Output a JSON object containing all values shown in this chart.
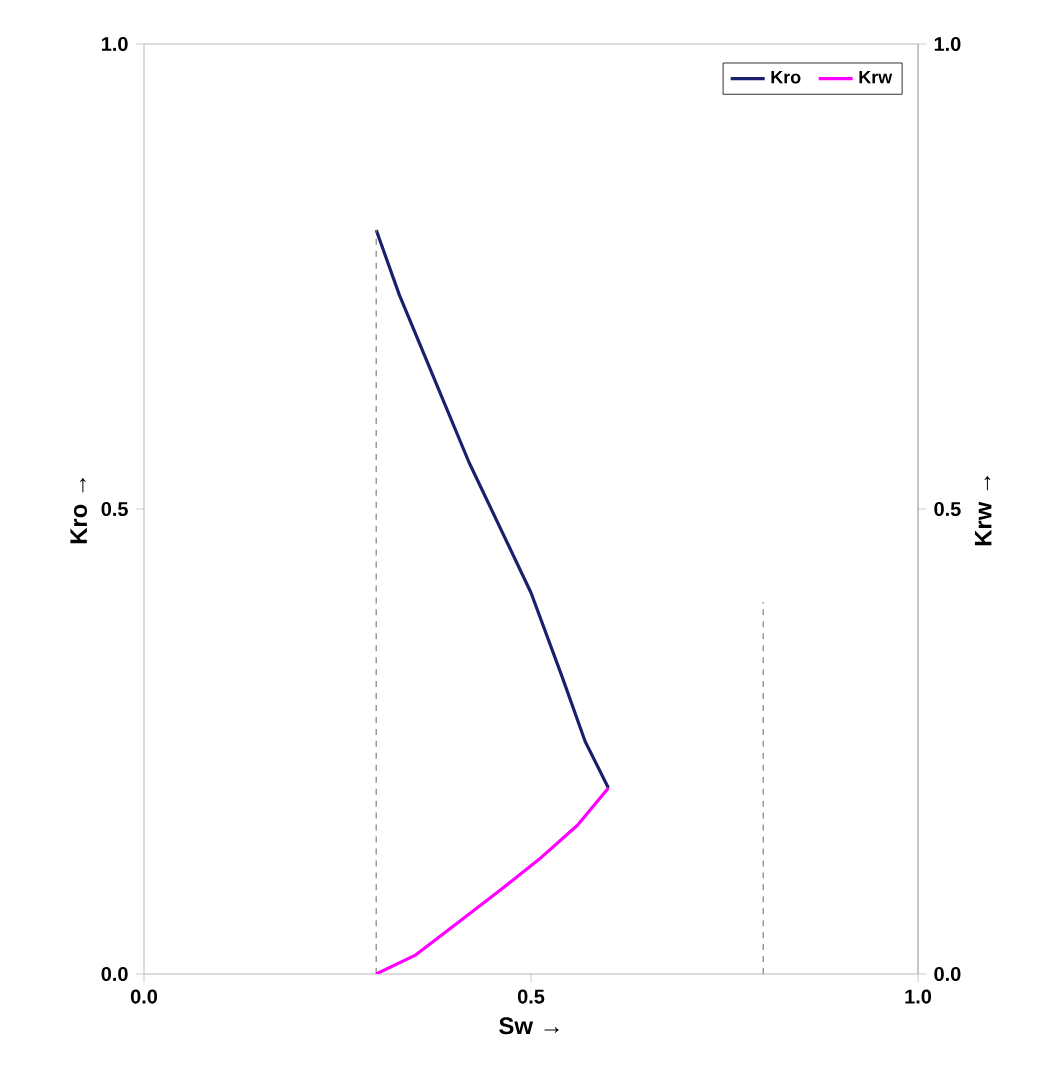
{
  "chart_data": {
    "type": "line",
    "xlabel": "Sw →",
    "ylabel": "Kro →",
    "y2label": "Krw →",
    "xlim": [
      0,
      1
    ],
    "ylim": [
      0,
      1
    ],
    "y2lim": [
      0,
      1
    ],
    "xticks": [
      {
        "value": 0,
        "label": "0.0"
      },
      {
        "value": 0.5,
        "label": "0.5"
      },
      {
        "value": 1,
        "label": "1.0"
      }
    ],
    "yticks": [
      {
        "value": 0,
        "label": "0.0"
      },
      {
        "value": 0.5,
        "label": "0.5"
      },
      {
        "value": 1,
        "label": "1.0"
      }
    ],
    "y2ticks": [
      {
        "value": 0,
        "label": "0.0"
      },
      {
        "value": 0.5,
        "label": "0.5"
      },
      {
        "value": 1,
        "label": "1.0"
      }
    ],
    "legend": "top right",
    "grid": false,
    "marker": "none",
    "series": [
      {
        "name": "Kro",
        "color": "#1a1f6e",
        "line_style": "solid",
        "x": [
          0.3,
          0.33,
          0.36,
          0.38,
          0.42,
          0.46,
          0.5,
          0.54,
          0.57,
          0.6
        ],
        "values": [
          0.8,
          0.73,
          0.67,
          0.63,
          0.55,
          0.48,
          0.41,
          0.32,
          0.25,
          0.2
        ]
      },
      {
        "name": "Krw",
        "color": "#ff00ff",
        "line_style": "solid",
        "axis": "y2",
        "x": [
          0.3,
          0.35,
          0.41,
          0.46,
          0.51,
          0.56,
          0.6
        ],
        "values": [
          0,
          0.02,
          0.058,
          0.09,
          0.123,
          0.16,
          0.2
        ]
      },
      {
        "color": "#808080",
        "line_style": "dashed",
        "x": [
          0.3,
          0.3
        ],
        "values": [
          0,
          0.8
        ]
      },
      {
        "color": "#808080",
        "line_style": "dashed",
        "x": [
          0.8,
          0.8
        ],
        "values": [
          0,
          0.4
        ]
      }
    ]
  }
}
